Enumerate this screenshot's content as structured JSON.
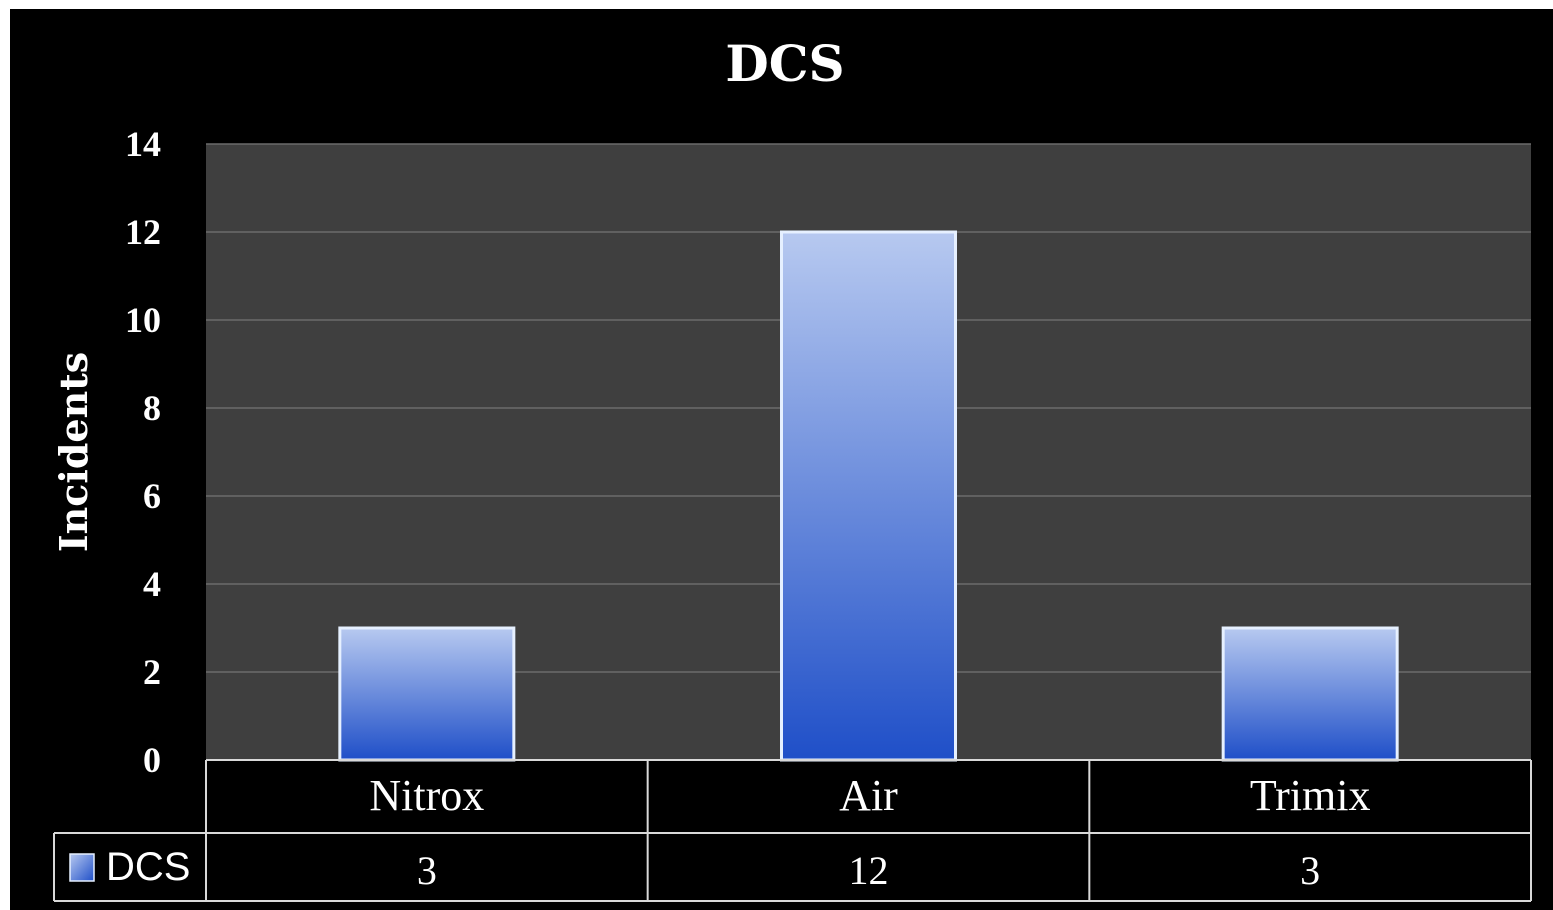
{
  "chart_data": {
    "type": "bar",
    "title": "DCS",
    "ylabel": "Incidents",
    "xlabel": "",
    "categories": [
      "Nitrox",
      "Air",
      "Trimix"
    ],
    "series": [
      {
        "name": "DCS",
        "values": [
          3,
          12,
          3
        ]
      }
    ],
    "ylim": [
      0,
      14
    ],
    "yticks": [
      0,
      2,
      4,
      6,
      8,
      10,
      12,
      14
    ],
    "grid": true,
    "legend": "data-table-left",
    "data_table": true
  },
  "colors": {
    "background": "#000000",
    "plot_area": "#3f3f3f",
    "gridline": "#6b6b6b",
    "bar_top": "#b7c9f0",
    "bar_bottom": "#1f4fc8",
    "bar_edge": "#e6f0ff"
  }
}
